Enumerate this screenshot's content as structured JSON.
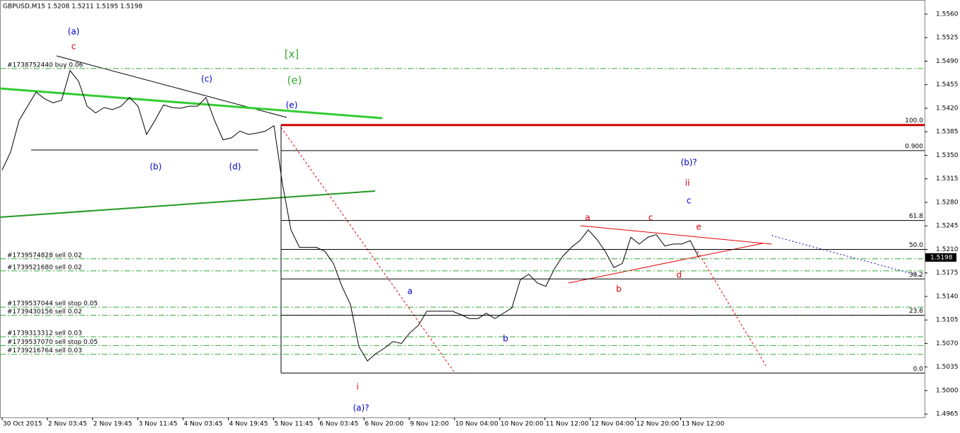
{
  "chart_data": {
    "type": "line",
    "title": "GBPUSD,M15  1.5208 1.5211 1.5195 1.5198",
    "series": [
      {
        "name": "GBPUSD",
        "color": "#000000",
        "values": [
          1.5328,
          1.5355,
          1.5402,
          1.5423,
          1.5444,
          1.5434,
          1.5428,
          1.5432,
          1.5476,
          1.546,
          1.5423,
          1.5413,
          1.5421,
          1.5418,
          1.5423,
          1.5436,
          1.5423,
          1.5381,
          1.5402,
          1.5425,
          1.5421,
          1.542,
          1.5423,
          1.5423,
          1.5436,
          1.5402,
          1.5373,
          1.5376,
          1.5386,
          1.5381,
          1.5383,
          1.5386,
          1.5394,
          1.5307,
          1.5239,
          1.5213,
          1.5213,
          1.5213,
          1.5207,
          1.5189,
          1.5155,
          1.5128,
          1.5065,
          1.5044,
          1.5055,
          1.5063,
          1.5073,
          1.507,
          1.5086,
          1.5097,
          1.5118,
          1.5118,
          1.5118,
          1.5118,
          1.5113,
          1.5107,
          1.5107,
          1.5115,
          1.5107,
          1.5115,
          1.5123,
          1.5165,
          1.5173,
          1.516,
          1.5155,
          1.5181,
          1.52,
          1.5213,
          1.5223,
          1.5239,
          1.5225,
          1.5207,
          1.5183,
          1.5189,
          1.5228,
          1.5218,
          1.5228,
          1.5232,
          1.5215,
          1.5218,
          1.5218,
          1.5223,
          1.5198
        ]
      }
    ],
    "ylim": [
      1.496,
      1.5581
    ],
    "yticks": [
      {
        "value": 1.556,
        "label": "1.5560"
      },
      {
        "value": 1.5525,
        "label": "1.5525"
      },
      {
        "value": 1.549,
        "label": "1.5490"
      },
      {
        "value": 1.5455,
        "label": "1.5455"
      },
      {
        "value": 1.542,
        "label": "1.5420"
      },
      {
        "value": 1.5385,
        "label": "1.5385"
      },
      {
        "value": 1.535,
        "label": "1.5350"
      },
      {
        "value": 1.5315,
        "label": "1.5315"
      },
      {
        "value": 1.528,
        "label": "1.5280"
      },
      {
        "value": 1.5245,
        "label": "1.5245"
      },
      {
        "value": 1.521,
        "label": "1.5210"
      },
      {
        "value": 1.5175,
        "label": "1.5175"
      },
      {
        "value": 1.514,
        "label": "1.5140"
      },
      {
        "value": 1.5105,
        "label": "1.5105"
      },
      {
        "value": 1.507,
        "label": "1.5070"
      },
      {
        "value": 1.5035,
        "label": "1.5035"
      },
      {
        "value": 1.5,
        "label": "1.5000"
      },
      {
        "value": 1.4965,
        "label": "1.4965"
      }
    ],
    "x_axis_labels": [
      "30 Oct 2015",
      "2 Nov 03:45",
      "2 Nov 19:45",
      "3 Nov 11:45",
      "4 Nov 03:45",
      "4 Nov 19:45",
      "5 Nov 11:45",
      "6 Nov 03:45",
      "6 Nov 20:00",
      "9 Nov 12:00",
      "10 Nov 04:00",
      "10 Nov 20:00",
      "11 Nov 12:00",
      "12 Nov 04:00",
      "12 Nov 20:00",
      "13 Nov 12:00"
    ],
    "last_price": 1.5198,
    "orders": [
      {
        "label": "#1738752440 buy 0.06",
        "price": 1.5479
      },
      {
        "label": "#1739574828 sell 0.02",
        "price": 1.5196
      },
      {
        "label": "#1739521680 sell 0.02",
        "price": 1.5178
      },
      {
        "label": "#1739537044 sell stop 0.05",
        "price": 1.5124
      },
      {
        "label": "#1739430156 sell 0.02",
        "price": 1.5112
      },
      {
        "label": "#1739313312 sell 0.03",
        "price": 1.508
      },
      {
        "label": "#1739537070 sell stop 0.05",
        "price": 1.5067
      },
      {
        "label": "#1739216764 sell 0.03",
        "price": 1.5054
      }
    ],
    "fib_levels": [
      {
        "label": "100.0",
        "price": 1.5395
      },
      {
        "label": "0.900",
        "price": 1.5357
      },
      {
        "label": "61.8",
        "price": 1.5253
      },
      {
        "label": "50.0",
        "price": 1.521
      },
      {
        "label": "38.2",
        "price": 1.5166
      },
      {
        "label": "23.6",
        "price": 1.5112
      },
      {
        "label": "0.0",
        "price": 1.5026
      }
    ],
    "annotations": [
      {
        "text": "(a)",
        "color": "#0000cc"
      },
      {
        "text": "c",
        "color": "#dd0000"
      },
      {
        "text": "[x]",
        "color": "#33aa33"
      },
      {
        "text": "(e)",
        "color": "#33aa33"
      },
      {
        "text": "(c)",
        "color": "#0000cc"
      },
      {
        "text": "(e)",
        "color": "#0000cc"
      },
      {
        "text": "(b)",
        "color": "#0000cc"
      },
      {
        "text": "(d)",
        "color": "#0000cc"
      },
      {
        "text": "(b)?",
        "color": "#0000cc"
      },
      {
        "text": "ii",
        "color": "#dd0000"
      },
      {
        "text": "c",
        "color": "#0000cc"
      },
      {
        "text": "a",
        "color": "#dd0000"
      },
      {
        "text": "c",
        "color": "#dd0000"
      },
      {
        "text": "e",
        "color": "#dd0000"
      },
      {
        "text": "d",
        "color": "#dd0000"
      },
      {
        "text": "b",
        "color": "#dd0000"
      },
      {
        "text": "a",
        "color": "#0000cc"
      },
      {
        "text": "b",
        "color": "#0000cc"
      },
      {
        "text": "i",
        "color": "#dd0000"
      },
      {
        "text": "(a)?",
        "color": "#0000cc"
      }
    ]
  }
}
